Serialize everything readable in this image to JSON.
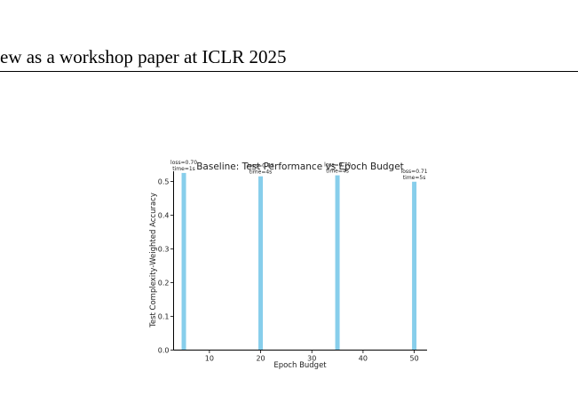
{
  "header": {
    "running_title": "ew as a workshop paper at ICLR 2025"
  },
  "colors": {
    "bar": "#87ceeb",
    "axis": "#000000",
    "text": "#222222"
  },
  "chart_data": {
    "type": "bar",
    "title": "Baseline: Test Performance vs Epoch Budget",
    "xlabel": "Epoch Budget",
    "ylabel": "Test Complexity-Weighted Accuracy",
    "xlim": [
      3,
      52.5
    ],
    "ylim": [
      0,
      0.53
    ],
    "xticks": [
      10,
      20,
      30,
      40,
      50
    ],
    "yticks": [
      0.0,
      0.1,
      0.2,
      0.3,
      0.4,
      0.5
    ],
    "grid": false,
    "x": [
      5,
      20,
      35,
      50
    ],
    "values": [
      0.525,
      0.515,
      0.518,
      0.499
    ],
    "annotations": [
      {
        "loss": "loss=0.70",
        "time": "time=1s"
      },
      {
        "loss": "loss=0.72",
        "time": "time=4s"
      },
      {
        "loss": "loss=0.70",
        "time": "time=4s"
      },
      {
        "loss": "loss=0.71",
        "time": "time=5s"
      }
    ]
  }
}
